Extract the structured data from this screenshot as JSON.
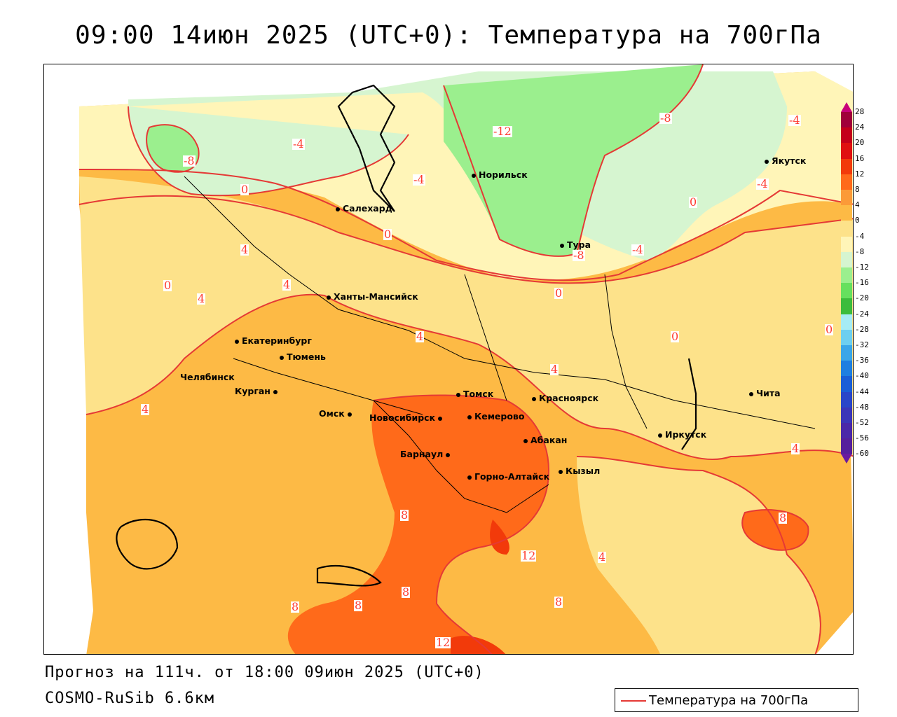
{
  "title": "09:00 14июн 2025 (UTC+0): Температура на 700гПа",
  "footer": {
    "forecast": "Прогноз на 111ч. от 18:00 09июн 2025 (UTC+0)",
    "model": "COSMO-RuSib 6.6км"
  },
  "legend": {
    "label": "Температура на 700гПа",
    "line_color": "#e53935"
  },
  "cities": [
    {
      "name": "Норильск"
    },
    {
      "name": "Якутск"
    },
    {
      "name": "Салехард"
    },
    {
      "name": "Тура"
    },
    {
      "name": "Ханты-Мансийск"
    },
    {
      "name": "Екатеринбург"
    },
    {
      "name": "Тюмень"
    },
    {
      "name": "Челябинск"
    },
    {
      "name": "Курган"
    },
    {
      "name": "Омск"
    },
    {
      "name": "Новосибирск"
    },
    {
      "name": "Томск"
    },
    {
      "name": "Кемерово"
    },
    {
      "name": "Красноярск"
    },
    {
      "name": "Абакан"
    },
    {
      "name": "Барнаул"
    },
    {
      "name": "Горно-Алтайск"
    },
    {
      "name": "Кызыл"
    },
    {
      "name": "Иркутск"
    },
    {
      "name": "Чита"
    }
  ],
  "contour_labels": [
    "-12",
    "-8",
    "-8",
    "-8",
    "-4",
    "-4",
    "-4",
    "-4",
    "-4",
    "0",
    "0",
    "0",
    "0",
    "0",
    "0",
    "0",
    "4",
    "4",
    "4",
    "4",
    "4",
    "4",
    "4",
    "4",
    "8",
    "8",
    "8",
    "8",
    "8",
    "8",
    "12",
    "12"
  ],
  "color_scale": {
    "labels": [
      "28",
      "24",
      "20",
      "16",
      "12",
      "8",
      "4",
      "0",
      "-4",
      "-8",
      "-12",
      "-16",
      "-20",
      "-24",
      "-28",
      "-32",
      "-36",
      "-40",
      "-44",
      "-48",
      "-52",
      "-56",
      "-60"
    ],
    "colors": [
      "#a0003a",
      "#c4001a",
      "#e01010",
      "#f23a0a",
      "#ff6a1a",
      "#fb9a38",
      "#fdba45",
      "#fde28a",
      "#fff5b8",
      "#d6f5d0",
      "#9bef8e",
      "#66e05e",
      "#3cbc3c",
      "#a6ecf5",
      "#6dcff0",
      "#3aa6e8",
      "#1f7fe0",
      "#1a5ed6",
      "#2a46c8",
      "#3b36b8",
      "#4a28a8",
      "#55209c",
      "#5a1890"
    ]
  }
}
